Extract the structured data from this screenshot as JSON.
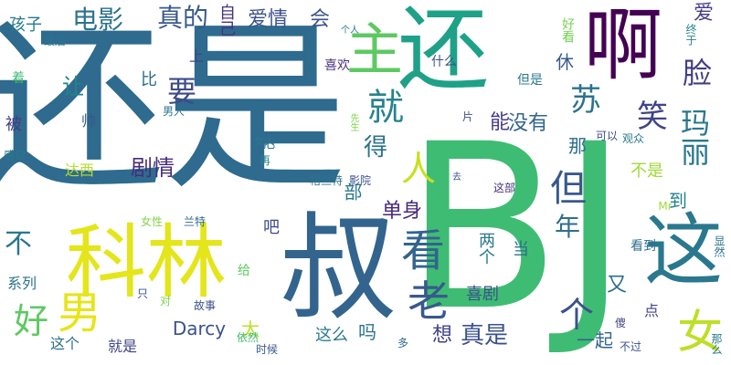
{
  "words": [
    {
      "text": "还是",
      "color": "#2e6b8e"
    },
    {
      "text": "BJ",
      "color": "#3fbc73"
    },
    {
      "text": "叔",
      "color": "#32648e"
    },
    {
      "text": "科林",
      "color": "#e4e51a"
    },
    {
      "text": "还",
      "color": "#1fa188"
    },
    {
      "text": "啊",
      "color": "#440154"
    },
    {
      "text": "主",
      "color": "#5ec962"
    },
    {
      "text": "这",
      "color": "#2a788e"
    },
    {
      "text": "女",
      "color": "#bddf26"
    },
    {
      "text": "就",
      "color": "#26828e"
    },
    {
      "text": "人",
      "color": "#c8e020"
    },
    {
      "text": "看",
      "color": "#32648e"
    },
    {
      "text": "老",
      "color": "#38598c"
    },
    {
      "text": "个",
      "color": "#3b528b"
    },
    {
      "text": "男",
      "color": "#e7e419"
    },
    {
      "text": "好",
      "color": "#5ec962"
    },
    {
      "text": "笑",
      "color": "#414487"
    },
    {
      "text": "脸",
      "color": "#433e85"
    },
    {
      "text": "苏",
      "color": "#2c728e"
    },
    {
      "text": "玛丽",
      "color": "#2a788e"
    },
    {
      "text": "电影",
      "color": "#2c728e"
    },
    {
      "text": "真的",
      "color": "#38598c"
    },
    {
      "text": "爱情",
      "color": "#3b528b"
    },
    {
      "text": "会",
      "color": "#3b528b"
    },
    {
      "text": "自己",
      "color": "#46337e"
    },
    {
      "text": "要",
      "color": "#3e4a89"
    },
    {
      "text": "得",
      "color": "#2c728e"
    },
    {
      "text": "能",
      "color": "#433e85"
    },
    {
      "text": "没有",
      "color": "#32648e"
    },
    {
      "text": "那",
      "color": "#2e6e8e"
    },
    {
      "text": "但",
      "color": "#38598c"
    },
    {
      "text": "年",
      "color": "#2e6e8e"
    },
    {
      "text": "到",
      "color": "#26828e"
    },
    {
      "text": "单身",
      "color": "#482878"
    },
    {
      "text": "不是",
      "color": "#a0da39"
    },
    {
      "text": "剧情",
      "color": "#472d7b"
    },
    {
      "text": "孩子",
      "color": "#2a788e"
    },
    {
      "text": "让",
      "color": "#26828e"
    },
    {
      "text": "比",
      "color": "#2e6e8e"
    },
    {
      "text": "上",
      "color": "#414487"
    },
    {
      "text": "休",
      "color": "#38598c"
    },
    {
      "text": "Darcy",
      "color": "#3b528b"
    },
    {
      "text": "太",
      "color": "#bddf26"
    },
    {
      "text": "吧",
      "color": "#3e4a89"
    },
    {
      "text": "想",
      "color": "#414487"
    },
    {
      "text": "真是",
      "color": "#3b528b"
    },
    {
      "text": "吗",
      "color": "#2c728e"
    },
    {
      "text": "这么",
      "color": "#2a788e"
    },
    {
      "text": "一起",
      "color": "#32648e"
    },
    {
      "text": "又",
      "color": "#2e6e8e"
    },
    {
      "text": "点",
      "color": "#414487"
    },
    {
      "text": "喜剧",
      "color": "#3b528b"
    },
    {
      "text": "不",
      "color": "#2a788e"
    },
    {
      "text": "系列",
      "color": "#2c728e"
    },
    {
      "text": "这个",
      "color": "#2e6e8e"
    },
    {
      "text": "就是",
      "color": "#414487"
    },
    {
      "text": "达西",
      "color": "#b5de2b"
    },
    {
      "text": "帅",
      "color": "#38598c"
    },
    {
      "text": "被",
      "color": "#433e85"
    },
    {
      "text": "看到",
      "color": "#2e6e8e"
    },
    {
      "text": "两个",
      "color": "#2a788e"
    },
    {
      "text": "当",
      "color": "#2c728e"
    },
    {
      "text": "部",
      "color": "#2a788e"
    },
    {
      "text": "爱",
      "color": "#433e85"
    },
    {
      "text": "好看",
      "color": "#75d054"
    },
    {
      "text": "终于",
      "color": "#26828e"
    },
    {
      "text": "最后",
      "color": "#2c728e"
    },
    {
      "text": "个人",
      "color": "#2a788e"
    },
    {
      "text": "喜欢",
      "color": "#46337e"
    },
    {
      "text": "什么",
      "color": "#3b528b"
    },
    {
      "text": "但是",
      "color": "#2a788e"
    },
    {
      "text": "着",
      "color": "#3fbc73"
    },
    {
      "text": "男人",
      "color": "#2c728e"
    },
    {
      "text": "先生",
      "color": "#84d44b"
    },
    {
      "text": "片",
      "color": "#3b528b"
    },
    {
      "text": "观众",
      "color": "#2a788e"
    },
    {
      "text": "可以",
      "color": "#3e4a89"
    },
    {
      "text": "感觉",
      "color": "#2a788e"
    },
    {
      "text": "女人",
      "color": "#2a788e"
    },
    {
      "text": "把",
      "color": "#2e6e8e"
    },
    {
      "text": "再",
      "color": "#26828e"
    },
    {
      "text": "格兰特",
      "color": "#2c728e"
    },
    {
      "text": "影院",
      "color": "#3b528b"
    },
    {
      "text": "去",
      "color": "#3b528b"
    },
    {
      "text": "这部",
      "color": "#46337e"
    },
    {
      "text": "Mr",
      "color": "#9fda3a"
    },
    {
      "text": "女性",
      "color": "#84d44b"
    },
    {
      "text": "兰特",
      "color": "#2e6e8e"
    },
    {
      "text": "给",
      "color": "#5ec962"
    },
    {
      "text": "只",
      "color": "#3b528b"
    },
    {
      "text": "对",
      "color": "#7ad151"
    },
    {
      "text": "故事",
      "color": "#3b528b"
    },
    {
      "text": "依然",
      "color": "#3fbc73"
    },
    {
      "text": "时候",
      "color": "#38598c"
    },
    {
      "text": "多",
      "color": "#2e6e8e"
    },
    {
      "text": "傻",
      "color": "#414487"
    },
    {
      "text": "不过",
      "color": "#3b528b"
    },
    {
      "text": "那么",
      "color": "#2a788e"
    },
    {
      "text": "显然",
      "color": "#2c728e"
    }
  ]
}
